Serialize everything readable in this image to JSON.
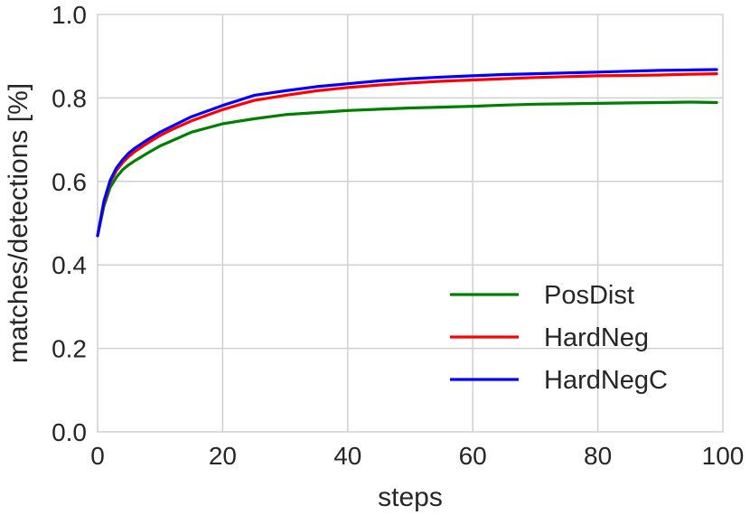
{
  "chart_data": {
    "type": "line",
    "title": "",
    "xlabel": "steps",
    "ylabel": "matches/detections [%]",
    "xlim": [
      0,
      100
    ],
    "ylim": [
      0.0,
      1.0
    ],
    "x_ticks": [
      "0",
      "20",
      "40",
      "60",
      "80",
      "100"
    ],
    "y_ticks": [
      "0.0",
      "0.2",
      "0.4",
      "0.6",
      "0.8",
      "1.0"
    ],
    "grid": true,
    "legend_position": "bottom-right",
    "x": [
      0,
      1,
      2,
      3,
      4,
      5,
      6,
      8,
      10,
      12,
      15,
      20,
      25,
      30,
      35,
      40,
      45,
      50,
      55,
      60,
      65,
      70,
      75,
      80,
      85,
      90,
      95,
      99
    ],
    "series": [
      {
        "name": "PosDist",
        "color": "#008000",
        "values": [
          0.47,
          0.54,
          0.585,
          0.61,
          0.628,
          0.64,
          0.65,
          0.668,
          0.685,
          0.698,
          0.718,
          0.738,
          0.75,
          0.76,
          0.765,
          0.77,
          0.773,
          0.776,
          0.778,
          0.78,
          0.783,
          0.785,
          0.786,
          0.787,
          0.788,
          0.789,
          0.79,
          0.789
        ]
      },
      {
        "name": "HardNeg",
        "color": "#ff0000",
        "values": [
          0.47,
          0.548,
          0.598,
          0.626,
          0.645,
          0.66,
          0.672,
          0.692,
          0.71,
          0.725,
          0.745,
          0.772,
          0.794,
          0.806,
          0.817,
          0.825,
          0.831,
          0.836,
          0.84,
          0.843,
          0.846,
          0.849,
          0.851,
          0.853,
          0.854,
          0.855,
          0.857,
          0.858
        ]
      },
      {
        "name": "HardNegC",
        "color": "#0000ff",
        "values": [
          0.47,
          0.552,
          0.602,
          0.632,
          0.652,
          0.668,
          0.68,
          0.7,
          0.718,
          0.733,
          0.755,
          0.782,
          0.806,
          0.817,
          0.827,
          0.834,
          0.841,
          0.846,
          0.85,
          0.853,
          0.856,
          0.858,
          0.86,
          0.862,
          0.864,
          0.866,
          0.867,
          0.868
        ]
      }
    ]
  }
}
